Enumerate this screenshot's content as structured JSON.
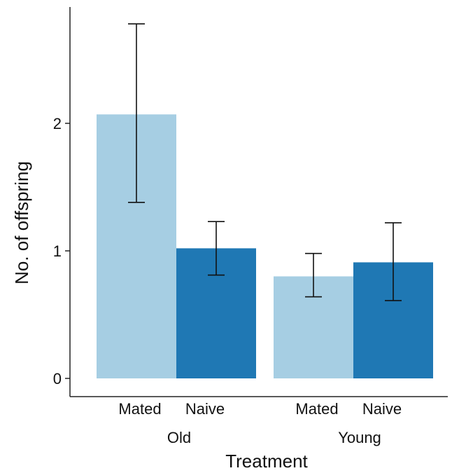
{
  "chart_data": {
    "type": "bar",
    "xlabel": "Treatment",
    "ylabel": "No. of offspring",
    "ylim": [
      0,
      2.95
    ],
    "yticks": [
      0,
      1,
      2
    ],
    "groups": [
      {
        "name": "Old",
        "bars": [
          {
            "category": "Mated",
            "value": 2.07,
            "err_low": 1.38,
            "err_high": 2.78,
            "color": "#a6cee3"
          },
          {
            "category": "Naive",
            "value": 1.02,
            "err_low": 0.81,
            "err_high": 1.23,
            "color": "#1f78b4"
          }
        ]
      },
      {
        "name": "Young",
        "bars": [
          {
            "category": "Mated",
            "value": 0.8,
            "err_low": 0.64,
            "err_high": 0.98,
            "color": "#a6cee3"
          },
          {
            "category": "Naive",
            "value": 0.91,
            "err_low": 0.61,
            "err_high": 1.22,
            "color": "#1f78b4"
          }
        ]
      }
    ],
    "grid": false,
    "legend": "none"
  }
}
